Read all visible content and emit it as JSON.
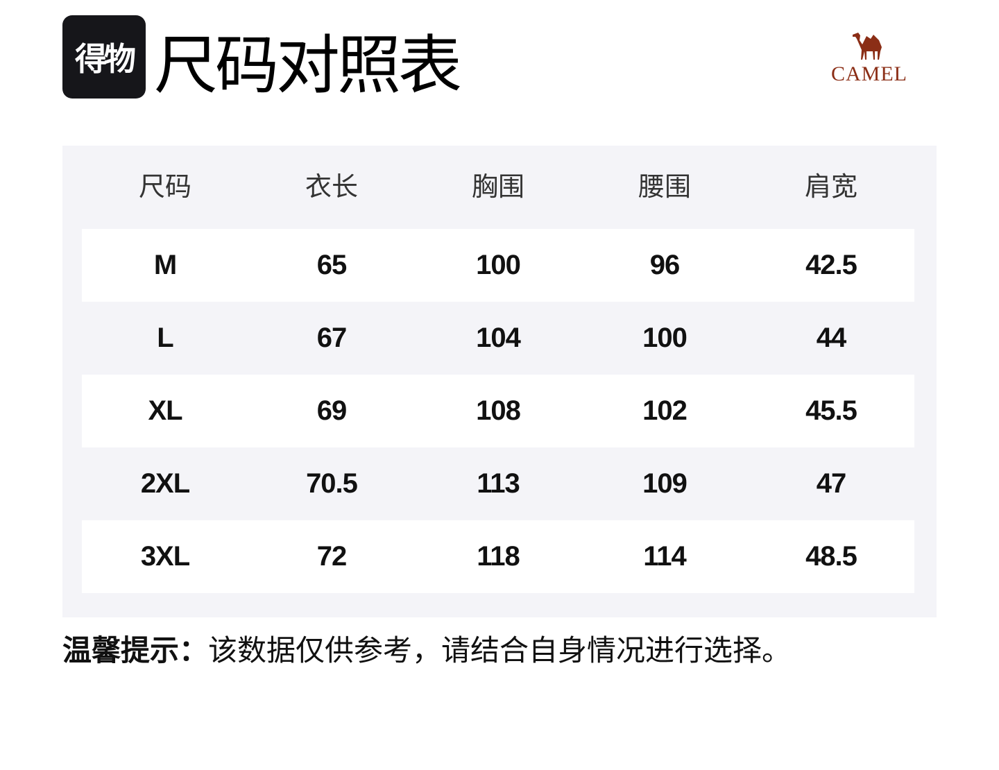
{
  "brand_badge": "得物",
  "title": "尺码对照表",
  "camel_logo": {
    "text": "CAMEL",
    "color": "#8b2e16"
  },
  "table": {
    "headers": [
      "尺码",
      "衣长",
      "胸围",
      "腰围",
      "肩宽"
    ],
    "rows": [
      [
        "M",
        "65",
        "100",
        "96",
        "42.5"
      ],
      [
        "L",
        "67",
        "104",
        "100",
        "44"
      ],
      [
        "XL",
        "69",
        "108",
        "102",
        "45.5"
      ],
      [
        "2XL",
        "70.5",
        "113",
        "109",
        "47"
      ],
      [
        "3XL",
        "72",
        "118",
        "114",
        "48.5"
      ]
    ]
  },
  "tip": {
    "label": "温馨提示：",
    "text": "该数据仅供参考，请结合自身情况进行选择。"
  }
}
